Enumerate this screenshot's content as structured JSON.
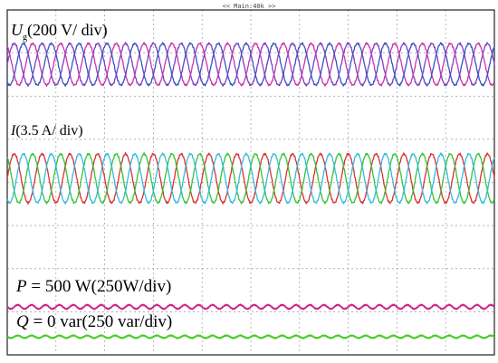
{
  "header": {
    "text": "<< Main:40k >>"
  },
  "labels": {
    "voltage": {
      "symbol": "U",
      "subscript": "g",
      "scale": "(200 V/ div)"
    },
    "current": {
      "symbol": "I",
      "scale": "(3.5 A/ div)"
    },
    "power": {
      "symbol": "P",
      "text": " = 500 W(250W/div)"
    },
    "reactive": {
      "symbol": "Q",
      "text": " = 0 var(250 var/div)"
    }
  },
  "chart_data": [
    {
      "type": "line",
      "title": "",
      "ylabel": "U_g (200 V/ div)",
      "grid": true,
      "series": [
        {
          "color": "#7b3fc4",
          "cycles": 17.5,
          "phase_deg": 0
        },
        {
          "color": "#cc33aa",
          "cycles": 17.5,
          "phase_deg": 120
        },
        {
          "color": "#3b52c4",
          "cycles": 17.5,
          "phase_deg": 240
        }
      ]
    },
    {
      "type": "line",
      "title": "",
      "ylabel": "I (3.5 A/ div)",
      "grid": true,
      "series": [
        {
          "color": "#d93030",
          "cycles": 17.5,
          "phase_deg": 0
        },
        {
          "color": "#33c433",
          "cycles": 17.5,
          "phase_deg": 120
        },
        {
          "color": "#33bbdd",
          "cycles": 17.5,
          "phase_deg": 240
        }
      ]
    },
    {
      "type": "line",
      "title": "",
      "ylabel": "P = 500 W(250W/div)",
      "series": [
        {
          "color": "#cc2288",
          "value": 500,
          "ripple_cycles": 35
        }
      ]
    },
    {
      "type": "line",
      "title": "",
      "ylabel": "Q = 0 var(250 var/div)",
      "series": [
        {
          "color": "#44cc22",
          "value": 0,
          "ripple_cycles": 35
        }
      ]
    }
  ]
}
